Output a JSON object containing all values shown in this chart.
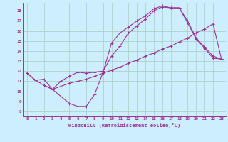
{
  "xlabel": "Windchill (Refroidissement éolien,°C)",
  "bg_color": "#cceeff",
  "grid_color": "#aaccbb",
  "line_color": "#993399",
  "xlim": [
    -0.5,
    23.5
  ],
  "ylim": [
    7.5,
    18.8
  ],
  "yticks": [
    8,
    9,
    10,
    11,
    12,
    13,
    14,
    15,
    16,
    17,
    18
  ],
  "xticks": [
    0,
    1,
    2,
    3,
    4,
    5,
    6,
    7,
    8,
    9,
    10,
    11,
    12,
    13,
    14,
    15,
    16,
    17,
    18,
    19,
    20,
    21,
    22,
    23
  ],
  "curve1_x": [
    0,
    1,
    2,
    3,
    4,
    5,
    6,
    7,
    8,
    9,
    10,
    11,
    12,
    13,
    14,
    15,
    16,
    17,
    18,
    19,
    20,
    21,
    22,
    23
  ],
  "curve1_y": [
    11.8,
    11.1,
    11.2,
    10.2,
    9.5,
    8.8,
    8.5,
    8.5,
    9.7,
    11.9,
    14.8,
    15.8,
    16.4,
    17.0,
    17.5,
    18.2,
    18.5,
    18.3,
    18.3,
    16.8,
    15.2,
    14.3,
    13.3,
    13.2
  ],
  "curve2_x": [
    0,
    1,
    2,
    3,
    4,
    5,
    6,
    7,
    8,
    9,
    10,
    11,
    12,
    13,
    14,
    15,
    16,
    17,
    18,
    19,
    20,
    21,
    22,
    23
  ],
  "curve2_y": [
    11.8,
    11.1,
    10.6,
    10.2,
    10.5,
    10.8,
    11.0,
    11.2,
    11.5,
    11.8,
    12.1,
    12.4,
    12.8,
    13.1,
    13.5,
    13.8,
    14.2,
    14.5,
    14.9,
    15.3,
    15.8,
    16.2,
    16.7,
    13.2
  ],
  "curve3_x": [
    2,
    3,
    4,
    5,
    6,
    7,
    8,
    9,
    10,
    11,
    12,
    13,
    14,
    15,
    16,
    17,
    18,
    19,
    20,
    21,
    22,
    23
  ],
  "curve3_y": [
    10.6,
    10.2,
    11.0,
    11.5,
    11.9,
    11.8,
    11.9,
    12.0,
    13.5,
    14.5,
    15.8,
    16.5,
    17.2,
    18.0,
    18.4,
    18.3,
    18.3,
    17.0,
    15.3,
    14.4,
    13.5,
    13.2
  ]
}
